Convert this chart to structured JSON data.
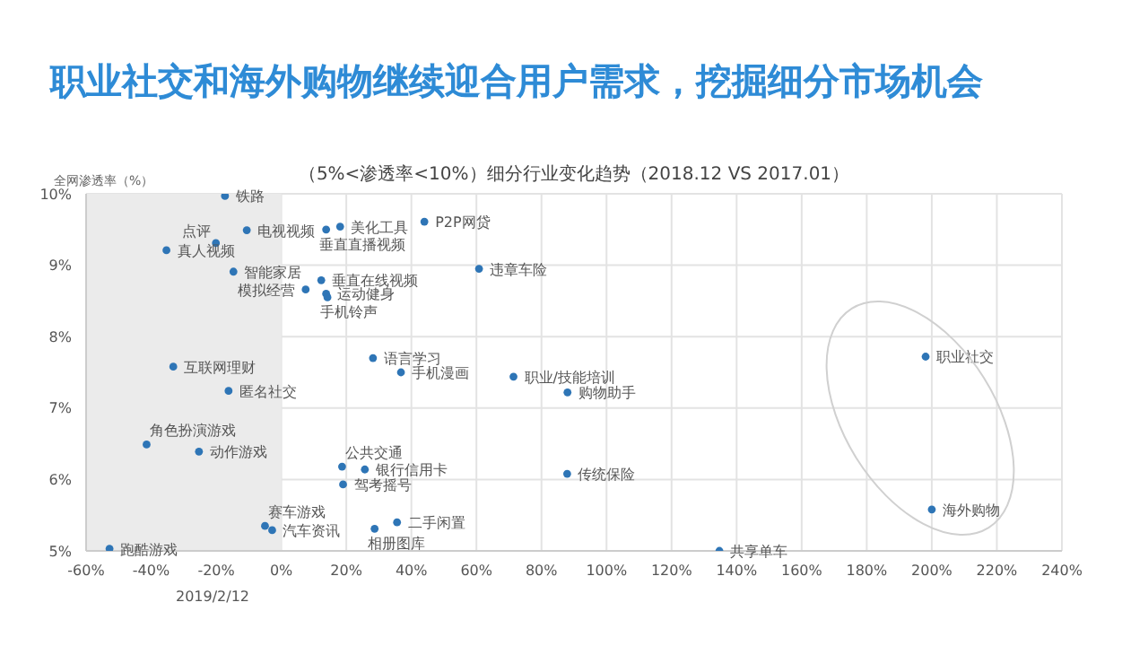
{
  "chart_data": {
    "type": "scatter",
    "title": "职业社交和海外购物继续迎合用户需求，挖掘细分市场机会",
    "subtitle": "（5%<渗透率<10%）细分行业变化趋势（2018.12  VS 2017.01）",
    "ylabel": "全网渗透率（%）",
    "annotations": [
      "2019/2/12"
    ],
    "series": [
      {
        "color": "#2e75b6",
        "x": [
          -17.3,
          -10.6,
          -20.1,
          -35.3,
          -14.7,
          7.5,
          18.1,
          13.8,
          12.3,
          13.8,
          14.2,
          44.0,
          60.8,
          -33.2,
          -16.2,
          28.2,
          36.8,
          71.4,
          88.0,
          -41.4,
          -25.3,
          18.7,
          25.7,
          19.0,
          87.9,
          -5.0,
          -2.8,
          -52.8,
          28.7,
          35.6,
          134.7,
          198.1,
          200.0
        ],
        "values": [
          9.97,
          9.49,
          9.31,
          9.21,
          8.91,
          8.66,
          9.54,
          9.5,
          8.79,
          8.6,
          8.55,
          9.61,
          8.95,
          7.58,
          7.24,
          7.7,
          7.5,
          7.44,
          7.22,
          6.49,
          6.39,
          6.18,
          6.14,
          5.93,
          6.08,
          5.35,
          5.29,
          5.03,
          5.31,
          5.4,
          5.0,
          7.72,
          5.58
        ],
        "value_labels": [
          "铁路",
          "电视视频",
          "点评",
          "真人视频",
          "智能家居",
          "模拟经营",
          "美化工具",
          "垂直直播视频",
          "垂直在线视频",
          "运动健身",
          "手机铃声",
          "P2P网贷",
          "违章车险",
          "互联网理财",
          "匿名社交",
          "语言学习",
          "手机漫画",
          "职业/技能培训",
          "购物助手",
          "角色扮演游戏",
          "动作游戏",
          "公共交通",
          "银行信用卡",
          "驾考摇号",
          "传统保险",
          "赛车游戏",
          "汽车资讯",
          "跑酷游戏",
          "相册图库",
          "二手闲置",
          "共享单车",
          "职业社交",
          "海外购物"
        ]
      }
    ],
    "xlim": [
      -60,
      240
    ],
    "xticks": [
      {
        "value": -60,
        "label": "-60%"
      },
      {
        "value": -40,
        "label": "-40%"
      },
      {
        "value": -20,
        "label": "-20%"
      },
      {
        "value": 0,
        "label": "0%"
      },
      {
        "value": 20,
        "label": "20%"
      },
      {
        "value": 40,
        "label": "40%"
      },
      {
        "value": 60,
        "label": "60%"
      },
      {
        "value": 80,
        "label": "80%"
      },
      {
        "value": 100,
        "label": "100%"
      },
      {
        "value": 120,
        "label": "120%"
      },
      {
        "value": 140,
        "label": "140%"
      },
      {
        "value": 160,
        "label": "160%"
      },
      {
        "value": 180,
        "label": "180%"
      },
      {
        "value": 200,
        "label": "200%"
      },
      {
        "value": 220,
        "label": "220%"
      },
      {
        "value": 240,
        "label": "240%"
      }
    ],
    "ylim": [
      5,
      10
    ],
    "yticks": [
      {
        "value": 5,
        "label": "5%"
      },
      {
        "value": 6,
        "label": "6%"
      },
      {
        "value": 7,
        "label": "7%"
      },
      {
        "value": 8,
        "label": "8%"
      },
      {
        "value": 9,
        "label": "9%"
      },
      {
        "value": 10,
        "label": "10%"
      }
    ],
    "bands": [
      {
        "axis": "x",
        "from": -60,
        "to": 0,
        "color": "#ebebeb"
      }
    ],
    "grid": true,
    "legend": false,
    "marker": "circle"
  }
}
